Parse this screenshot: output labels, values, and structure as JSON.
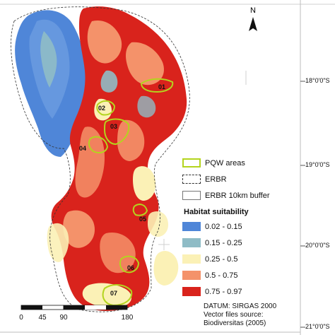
{
  "north_arrow": {
    "label": "N"
  },
  "latitudes": [
    "18°0'0\"S",
    "19°0'0\"S",
    "20°0'0\"S",
    "21°0'0\"S"
  ],
  "sites": [
    "01",
    "02",
    "03",
    "04",
    "05",
    "06",
    "07"
  ],
  "legend": {
    "pqw_areas": "PQW areas",
    "erbr": "ERBR",
    "erbr_buffer": "ERBR 10km buffer",
    "habitat_title": "Habitat suitability",
    "classes": [
      {
        "label": "0.02 - 0.15",
        "color": "#4f86d8"
      },
      {
        "label": "0.15 - 0.25",
        "color": "#8fbcc6"
      },
      {
        "label": "0.25 - 0.5",
        "color": "#fbf1b6"
      },
      {
        "label": "0.5 - 0.75",
        "color": "#f4926a"
      },
      {
        "label": "0.75 - 0.97",
        "color": "#d9231c"
      }
    ],
    "pqw_color": "#b4d41e"
  },
  "scale_bar": {
    "labels": [
      "0",
      "45",
      "90",
      "180"
    ]
  },
  "datum": "DATUM: SIRGAS 2000",
  "source_line": "Vector files source:",
  "source_line2": "Biodiversitas (2005)"
}
